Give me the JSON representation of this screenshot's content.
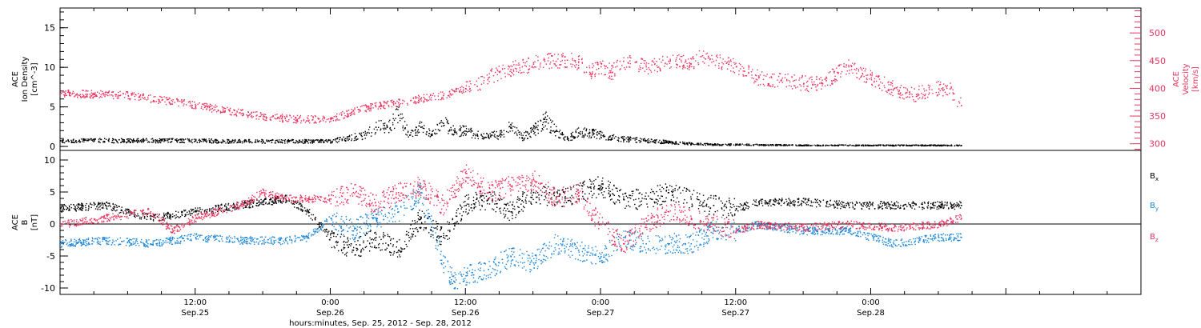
{
  "colors": {
    "black": "#000000",
    "pink": "#e8335e",
    "blue": "#1a86d8"
  },
  "xaxis": {
    "title": "hours:minutes, Sep. 25, 2012 - Sep. 28, 2012",
    "range_hours": [
      0,
      96
    ],
    "ticks": [
      {
        "h": 12,
        "time": "12:00",
        "date": "Sep.25"
      },
      {
        "h": 24,
        "time": "0:00",
        "date": "Sep.26"
      },
      {
        "h": 36,
        "time": "12:00",
        "date": "Sep.26"
      },
      {
        "h": 48,
        "time": "0:00",
        "date": "Sep.27"
      },
      {
        "h": 60,
        "time": "12:00",
        "date": "Sep.27"
      },
      {
        "h": 72,
        "time": "0:00",
        "date": "Sep.28"
      }
    ]
  },
  "chart_data": [
    {
      "type": "scatter",
      "panel": "top",
      "ylabel_left": [
        "ACE",
        "Ion Density",
        "[cm^-3]"
      ],
      "ylabel_right": [
        "ACE",
        "Velocity",
        "[km/s]"
      ],
      "ylim_left": [
        -0.5,
        17.5
      ],
      "ylim_right": [
        288,
        545
      ],
      "yticks_left": [
        "0",
        "5",
        "10",
        "15"
      ],
      "yticks_right": [
        "300",
        "350",
        "400",
        "450",
        "500"
      ],
      "grid": false,
      "series": [
        {
          "key": "density",
          "color": "#000000",
          "axis": "left",
          "x": [
            0,
            3,
            6,
            9,
            12,
            15,
            18,
            21,
            24,
            25,
            27,
            28,
            29,
            30,
            31,
            32,
            33,
            34,
            35,
            36,
            37,
            38,
            39,
            40,
            41,
            42,
            43,
            44,
            45,
            46,
            47,
            48,
            50,
            52,
            54,
            56,
            58,
            60,
            66,
            72,
            78,
            80
          ],
          "y": [
            0.8,
            0.8,
            0.8,
            0.8,
            0.8,
            0.7,
            0.7,
            0.7,
            0.7,
            1.0,
            1.5,
            2.5,
            2.5,
            4.0,
            1.5,
            2.5,
            1.5,
            3.0,
            2.0,
            2.0,
            1.5,
            1.5,
            1.5,
            2.5,
            1.2,
            2.0,
            3.5,
            2.0,
            1.0,
            1.8,
            1.8,
            1.5,
            1.0,
            0.8,
            0.6,
            0.4,
            0.3,
            0.3,
            0.2,
            0.2,
            0.2,
            0.2
          ]
        },
        {
          "key": "velocity",
          "color": "#e8335e",
          "axis": "right",
          "x": [
            0,
            3,
            6,
            9,
            12,
            15,
            18,
            21,
            24,
            26,
            28,
            30,
            32,
            34,
            35,
            36,
            37,
            38,
            39,
            40,
            41,
            42,
            43,
            44,
            45,
            46,
            47,
            48,
            49,
            50,
            52,
            54,
            56,
            57,
            58,
            60,
            62,
            64,
            66,
            67,
            68,
            70,
            72,
            74,
            76,
            78,
            79,
            80
          ],
          "y": [
            392,
            390,
            388,
            380,
            370,
            360,
            350,
            345,
            345,
            360,
            368,
            375,
            382,
            388,
            395,
            400,
            405,
            420,
            430,
            435,
            440,
            445,
            450,
            450,
            452,
            448,
            430,
            440,
            430,
            450,
            440,
            450,
            445,
            460,
            450,
            440,
            420,
            415,
            410,
            408,
            415,
            440,
            420,
            400,
            390,
            400,
            400,
            370
          ]
        }
      ]
    },
    {
      "type": "scatter",
      "panel": "bottom",
      "ylabel_left": [
        "ACE",
        "B",
        "[nT]"
      ],
      "ylim": [
        -11,
        11.5
      ],
      "yticks": [
        "-10",
        "-5",
        "0",
        "5",
        "10"
      ],
      "zero_line": true,
      "grid": false,
      "series": [
        {
          "key": "Bx",
          "name": "B",
          "sub": "x",
          "color": "#000000",
          "x": [
            0,
            4,
            8,
            12,
            16,
            20,
            22,
            24,
            26,
            28,
            30,
            32,
            34,
            36,
            38,
            40,
            42,
            44,
            46,
            48,
            50,
            52,
            54,
            56,
            58,
            60,
            62,
            66,
            70,
            74,
            78,
            80
          ],
          "y": [
            2.5,
            3,
            1,
            2,
            3,
            4,
            2,
            -2,
            -4,
            -2,
            -4,
            1,
            -2,
            3,
            4,
            2,
            5,
            4,
            5,
            6,
            4,
            4,
            5,
            4,
            3,
            2.5,
            3.5,
            3.5,
            3,
            3,
            3,
            3
          ]
        },
        {
          "key": "By",
          "name": "B",
          "sub": "y",
          "color": "#1a86d8",
          "x": [
            0,
            4,
            8,
            12,
            16,
            20,
            22,
            24,
            26,
            28,
            30,
            32,
            34,
            35,
            36,
            38,
            40,
            42,
            44,
            46,
            48,
            50,
            52,
            54,
            56,
            58,
            60,
            62,
            66,
            70,
            74,
            78,
            80
          ],
          "y": [
            -3,
            -2.5,
            -3,
            -2,
            -2.5,
            -2.5,
            -2,
            1,
            -1,
            1,
            2,
            5,
            -6,
            -9,
            -8,
            -7,
            -5,
            -6,
            -3,
            -4,
            -5,
            -2,
            -3,
            -3,
            -3,
            -1,
            -1,
            0,
            -1,
            -1,
            -3,
            -2,
            -2
          ]
        },
        {
          "key": "Bz",
          "name": "B",
          "sub": "z",
          "color": "#e8335e",
          "x": [
            0,
            4,
            8,
            10,
            12,
            16,
            18,
            20,
            22,
            24,
            26,
            28,
            30,
            32,
            34,
            36,
            38,
            40,
            42,
            44,
            46,
            48,
            50,
            52,
            54,
            56,
            58,
            60,
            62,
            66,
            70,
            74,
            78,
            80
          ],
          "y": [
            0,
            1,
            2,
            -1,
            1,
            3,
            5,
            4,
            4,
            4,
            5,
            3,
            5,
            6,
            3,
            8,
            5,
            6,
            7,
            4,
            5,
            0,
            -3,
            0,
            2,
            1,
            0,
            -1,
            0,
            -0.5,
            0,
            -0.5,
            0,
            1
          ]
        }
      ]
    }
  ]
}
